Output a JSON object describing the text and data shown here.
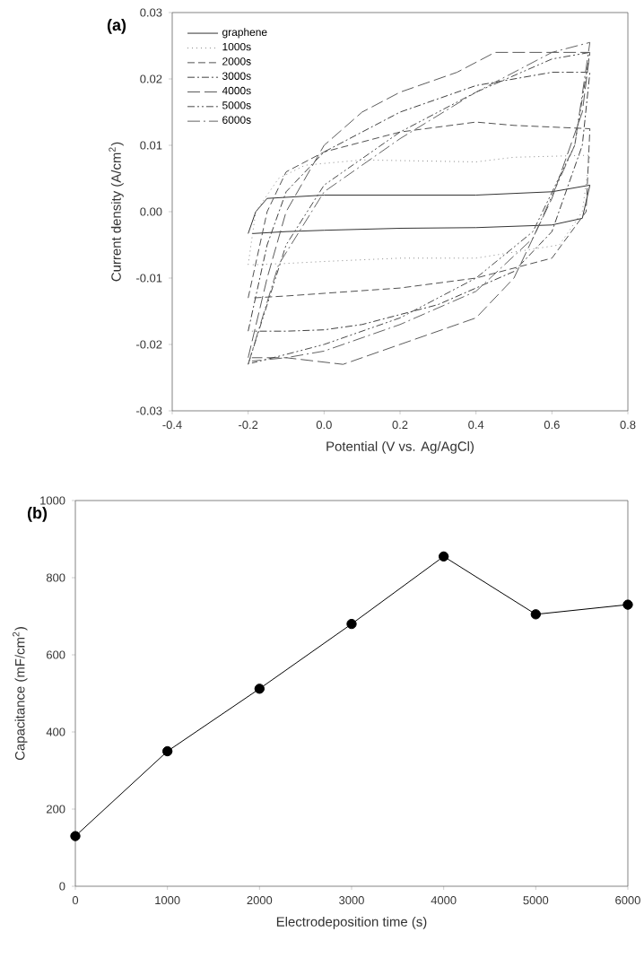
{
  "chart_data": [
    {
      "type": "line",
      "xlabel": "Potential (V vs. Ag/AgCl)",
      "ylabel": "Current density (A/cm$^{2}$)",
      "annotations": [
        "(a)"
      ],
      "xlim": [
        -0.4,
        0.8
      ],
      "xticks": [
        -0.4,
        -0.2,
        {
          "value": 0,
          "label": "0.0"
        },
        0.2,
        0.4,
        0.6,
        0.8
      ],
      "ylim": [
        -0.03,
        0.03
      ],
      "yticks": [
        -0.03,
        -0.02,
        -0.01,
        {
          "value": 0,
          "label": "0.00"
        },
        0.01,
        0.02,
        0.03
      ],
      "legend": "top left",
      "marker": "none",
      "grid": false,
      "series": [
        {
          "name": "graphene",
          "color": "#333333",
          "line_style": "solid",
          "x": [
            -0.2,
            -0.18,
            -0.15,
            0.0,
            0.4,
            0.6,
            0.7,
            0.68,
            0.6,
            0.4,
            0.2,
            0.0,
            -0.1,
            -0.19
          ],
          "values": [
            -0.0033,
            0.0,
            0.002,
            0.0025,
            0.0025,
            0.003,
            0.004,
            -0.001,
            -0.002,
            -0.0024,
            -0.0025,
            -0.0028,
            -0.003,
            -0.0033
          ]
        },
        {
          "name": "1000s",
          "color": "#888888",
          "line_style": "dotted",
          "x": [
            -0.2,
            -0.18,
            -0.12,
            -0.05,
            0.1,
            0.4,
            0.5,
            0.7,
            0.68,
            0.62,
            0.4,
            0.2,
            0.0,
            -0.1,
            -0.19
          ],
          "values": [
            -0.008,
            0.0,
            0.005,
            0.007,
            0.0078,
            0.0075,
            0.0082,
            0.0085,
            0.0,
            -0.005,
            -0.007,
            -0.007,
            -0.0075,
            -0.0078,
            -0.008
          ]
        },
        {
          "name": "2000s",
          "color": "#505050",
          "line_style": "dashed",
          "x": [
            -0.2,
            -0.15,
            -0.1,
            0.0,
            0.2,
            0.4,
            0.5,
            0.7,
            0.69,
            0.6,
            0.4,
            0.2,
            0.0,
            -0.1,
            -0.19
          ],
          "values": [
            -0.013,
            0.0,
            0.006,
            0.009,
            0.012,
            0.0135,
            0.013,
            0.0125,
            0.0,
            -0.007,
            -0.01,
            -0.0115,
            -0.0123,
            -0.0127,
            -0.013
          ]
        },
        {
          "name": "3000s",
          "color": "#404040",
          "line_style": "dashdot",
          "x": [
            -0.2,
            -0.15,
            -0.1,
            0.0,
            0.2,
            0.4,
            0.6,
            0.7,
            0.68,
            0.6,
            0.5,
            0.3,
            0.1,
            0.0,
            -0.1,
            -0.19
          ],
          "values": [
            -0.018,
            -0.005,
            0.003,
            0.009,
            0.015,
            0.019,
            0.021,
            0.021,
            0.01,
            -0.003,
            -0.009,
            -0.014,
            -0.017,
            -0.0178,
            -0.018,
            -0.018
          ]
        },
        {
          "name": "4000s",
          "color": "#5a5a5a",
          "line_style": "longdash",
          "x": [
            -0.2,
            -0.15,
            -0.1,
            0.0,
            0.1,
            0.2,
            0.35,
            0.45,
            0.7,
            0.68,
            0.6,
            0.5,
            0.4,
            0.2,
            0.05,
            -0.1,
            -0.19
          ],
          "values": [
            -0.022,
            -0.01,
            0.0,
            0.01,
            0.015,
            0.018,
            0.021,
            0.024,
            0.024,
            0.015,
            0.002,
            -0.01,
            -0.016,
            -0.02,
            -0.023,
            -0.022,
            -0.022
          ]
        },
        {
          "name": "5000s",
          "color": "#484848",
          "line_style": "dashdotdot",
          "x": [
            -0.2,
            -0.1,
            0.0,
            0.2,
            0.4,
            0.6,
            0.7,
            0.66,
            0.55,
            0.4,
            0.2,
            0.0,
            -0.1,
            -0.19
          ],
          "values": [
            -0.023,
            -0.005,
            0.004,
            0.012,
            0.018,
            0.023,
            0.024,
            0.01,
            -0.003,
            -0.01,
            -0.016,
            -0.02,
            -0.0215,
            -0.0228
          ]
        },
        {
          "name": "6000s",
          "color": "#626262",
          "line_style": "longdashdot",
          "x": [
            -0.2,
            -0.12,
            0.0,
            0.2,
            0.4,
            0.6,
            0.7,
            0.66,
            0.55,
            0.4,
            0.2,
            0.0,
            -0.1,
            -0.19
          ],
          "values": [
            -0.023,
            -0.008,
            0.003,
            0.011,
            0.018,
            0.024,
            0.0255,
            0.01,
            -0.004,
            -0.012,
            -0.017,
            -0.021,
            -0.022,
            -0.0225
          ]
        }
      ]
    },
    {
      "type": "line",
      "xlabel": "Electrodeposition time (s)",
      "ylabel": "Capacitance (mF/cm$^{2}$)",
      "annotations": [
        "(b)"
      ],
      "xlim": [
        0,
        6000
      ],
      "xticks": [
        0,
        1000,
        2000,
        3000,
        4000,
        5000,
        6000
      ],
      "ylim": [
        0,
        1000
      ],
      "yticks": [
        0,
        200,
        400,
        600,
        800,
        1000
      ],
      "marker": "circle",
      "grid": false,
      "legend": false,
      "series": [
        {
          "color": "#000000",
          "line_style": "solid",
          "x": [
            0,
            1000,
            2000,
            3000,
            4000,
            5000,
            6000
          ],
          "values": [
            130,
            350,
            512,
            680,
            855,
            705,
            730
          ]
        }
      ]
    }
  ]
}
